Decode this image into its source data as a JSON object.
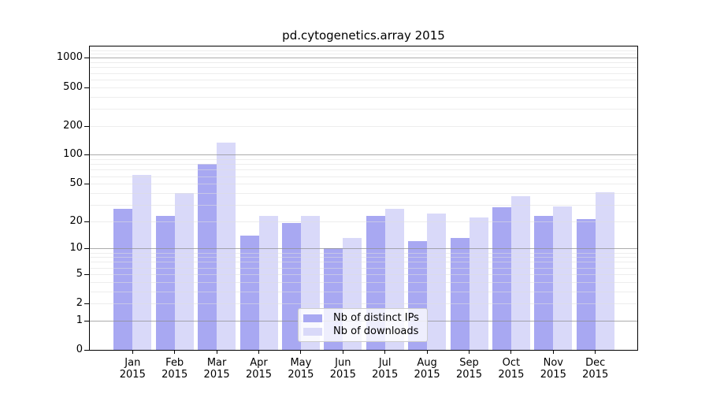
{
  "title": "pd.cytogenetics.array 2015",
  "legend": {
    "items": [
      {
        "label": "Nb of distinct IPs",
        "color": "#a8a8f2"
      },
      {
        "label": "Nb of downloads",
        "color": "#d9d9f9"
      }
    ]
  },
  "chart_data": {
    "type": "bar",
    "title": "pd.cytogenetics.array 2015",
    "categories": [
      "Jan 2015",
      "Feb 2015",
      "Mar 2015",
      "Apr 2015",
      "May 2015",
      "Jun 2015",
      "Jul 2015",
      "Aug 2015",
      "Sep 2015",
      "Oct 2015",
      "Nov 2015",
      "Dec 2015"
    ],
    "series": [
      {
        "name": "Nb of distinct IPs",
        "color": "#a8a8f2",
        "values": [
          27,
          23,
          80,
          14,
          19,
          10,
          23,
          12,
          13,
          28,
          23,
          21
        ]
      },
      {
        "name": "Nb of downloads",
        "color": "#d9d9f9",
        "values": [
          62,
          40,
          135,
          23,
          23,
          13,
          27,
          24,
          22,
          37,
          29,
          41
        ]
      }
    ],
    "yscale": "log(1+y)",
    "ylim": [
      0,
      1300
    ],
    "ytick_values": [
      0,
      1,
      2,
      5,
      10,
      20,
      50,
      100,
      200,
      500,
      1000
    ],
    "ytick_labels": [
      "0",
      "1",
      "2",
      "5",
      "10",
      "20",
      "50",
      "100",
      "200",
      "500",
      "1000"
    ],
    "grid_major_values": [
      1,
      10,
      100,
      1000
    ],
    "grid": "horizontal major + minor",
    "legend_position": "lower center",
    "colors": {
      "axis": "#000000",
      "major_grid": "#b0b0b0",
      "minor_grid": "#ededed",
      "background": "#ffffff"
    }
  }
}
